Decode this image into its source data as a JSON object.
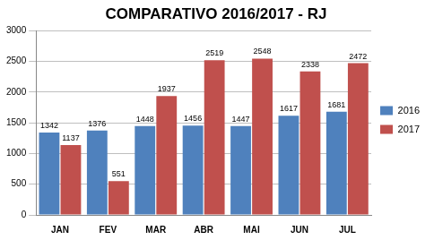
{
  "chart_data": {
    "type": "bar",
    "title": "COMPARATIVO 2016/2017 - RJ",
    "categories": [
      "JAN",
      "FEV",
      "MAR",
      "ABR",
      "MAI",
      "JUN",
      "JUL"
    ],
    "series": [
      {
        "name": "2016",
        "color": "#4f81bd",
        "values": [
          1342,
          1376,
          1448,
          1456,
          1447,
          1617,
          1681
        ]
      },
      {
        "name": "2017",
        "color": "#c0504d",
        "values": [
          1137,
          551,
          1937,
          2519,
          2548,
          2338,
          2472
        ]
      }
    ],
    "ylim": [
      0,
      3000
    ],
    "yticks": [
      0,
      500,
      1000,
      1500,
      2000,
      2500,
      3000
    ],
    "grid": true,
    "legend": "right",
    "data_labels": true
  }
}
